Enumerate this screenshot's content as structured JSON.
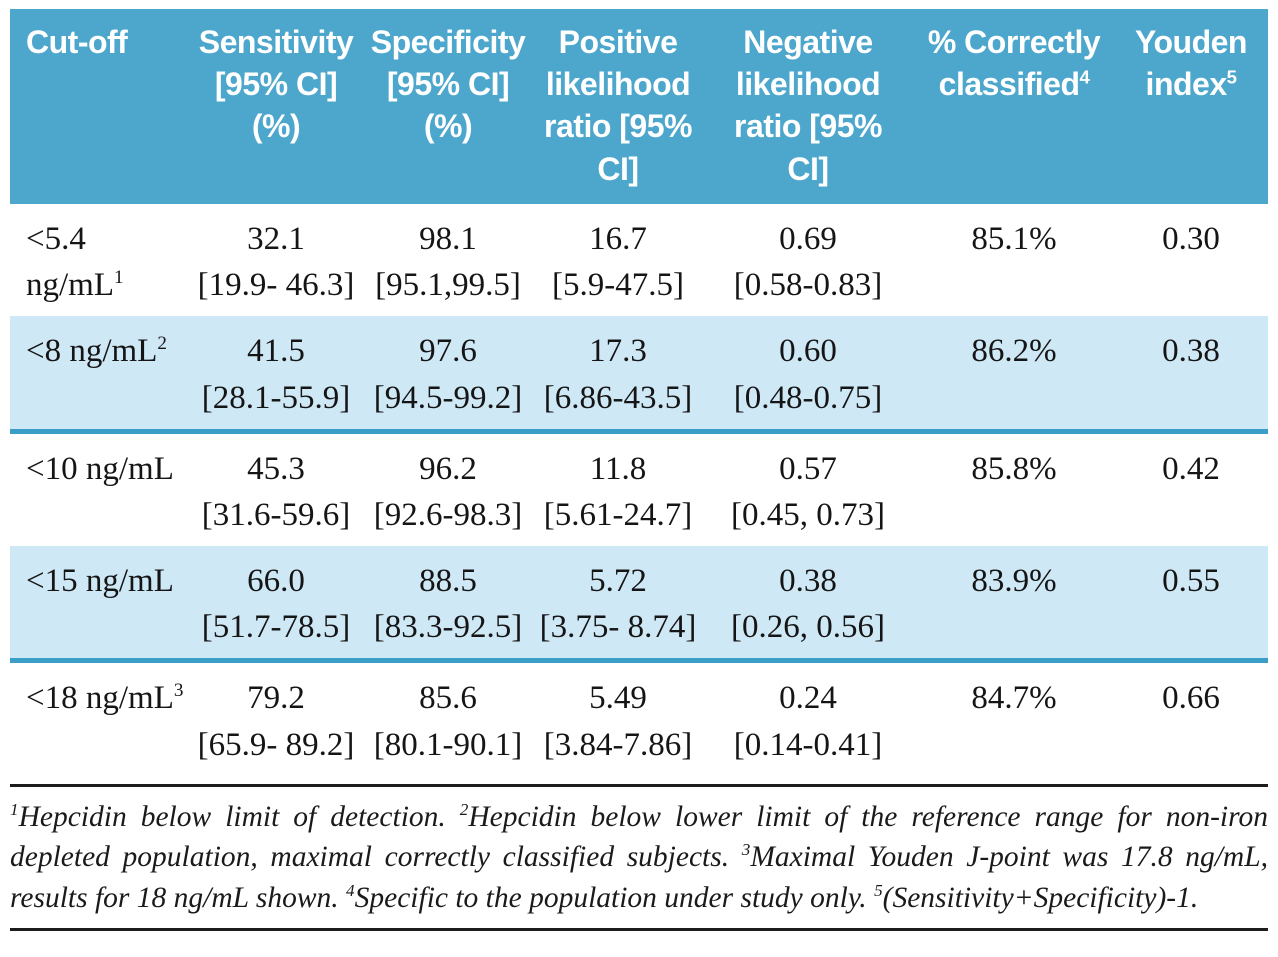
{
  "figure": {
    "colors": {
      "header_bg": "#4da7cc",
      "header_text": "#ffffff",
      "shaded_row_bg": "#cfe8f6",
      "shaded_row_border": "#3b9ec6",
      "rule": "#1c1c1c"
    },
    "header": {
      "columns": [
        {
          "label": "Cut-off",
          "sup": ""
        },
        {
          "label": "Sensitivity\n[95% CI]\n(%)",
          "sup": ""
        },
        {
          "label": "Specificity\n[95% CI]\n(%)",
          "sup": ""
        },
        {
          "label": "Positive\nlikelihood\nratio [95%\nCI]",
          "sup": ""
        },
        {
          "label": "Negative\nlikelihood\nratio [95%\nCI]",
          "sup": ""
        },
        {
          "label": "% Correctly\nclassified",
          "sup": "4"
        },
        {
          "label": "Youden\nindex",
          "sup": "5"
        }
      ]
    },
    "rows": [
      {
        "cutoff": "<5.4 ng/mL",
        "cutoff_sup": "1",
        "sens": "32.1",
        "sens_ci": "[19.9- 46.3]",
        "spec": "98.1",
        "spec_ci": "[95.1,99.5]",
        "plr": "16.7",
        "plr_ci": "[5.9-47.5]",
        "nlr": "0.69",
        "nlr_ci": "[0.58-0.83]",
        "correct": "85.1%",
        "youden": "0.30"
      },
      {
        "cutoff": "<8 ng/mL",
        "cutoff_sup": "2",
        "sens": "41.5",
        "sens_ci": "[28.1-55.9]",
        "spec": "97.6",
        "spec_ci": "[94.5-99.2]",
        "plr": "17.3",
        "plr_ci": "[6.86-43.5]",
        "nlr": "0.60",
        "nlr_ci": "[0.48-0.75]",
        "correct": "86.2%",
        "youden": "0.38"
      },
      {
        "cutoff": "<10 ng/mL",
        "cutoff_sup": "",
        "sens": "45.3",
        "sens_ci": "[31.6-59.6]",
        "spec": "96.2",
        "spec_ci": "[92.6-98.3]",
        "plr": "11.8",
        "plr_ci": "[5.61-24.7]",
        "nlr": "0.57",
        "nlr_ci": "[0.45, 0.73]",
        "correct": "85.8%",
        "youden": "0.42"
      },
      {
        "cutoff": "<15 ng/mL",
        "cutoff_sup": "",
        "sens": "66.0",
        "sens_ci": "[51.7-78.5]",
        "spec": "88.5",
        "spec_ci": "[83.3-92.5]",
        "plr": "5.72",
        "plr_ci": "[3.75- 8.74]",
        "nlr": "0.38",
        "nlr_ci": "[0.26, 0.56]",
        "correct": "83.9%",
        "youden": "0.55"
      },
      {
        "cutoff": "<18 ng/mL",
        "cutoff_sup": "3",
        "sens": "79.2",
        "sens_ci": "[65.9- 89.2]",
        "spec": "85.6",
        "spec_ci": "[80.1-90.1]",
        "plr": "5.49",
        "plr_ci": "[3.84-7.86]",
        "nlr": "0.24",
        "nlr_ci": "[0.14-0.41]",
        "correct": "84.7%",
        "youden": "0.66"
      }
    ],
    "footnotes": [
      {
        "sup": "1",
        "text": "Hepcidin below limit of detection. "
      },
      {
        "sup": "2",
        "text": "Hepcidin below lower limit of the reference range for non-iron depleted population, maximal correctly classified subjects. "
      },
      {
        "sup": "3",
        "text": "Maximal Youden J-point was 17.8 ng/mL, results for 18 ng/mL shown. "
      },
      {
        "sup": "4",
        "text": "Specific to the population under study only. "
      },
      {
        "sup": "5",
        "text": "(Sensitivity+Specificity)-1."
      }
    ]
  }
}
